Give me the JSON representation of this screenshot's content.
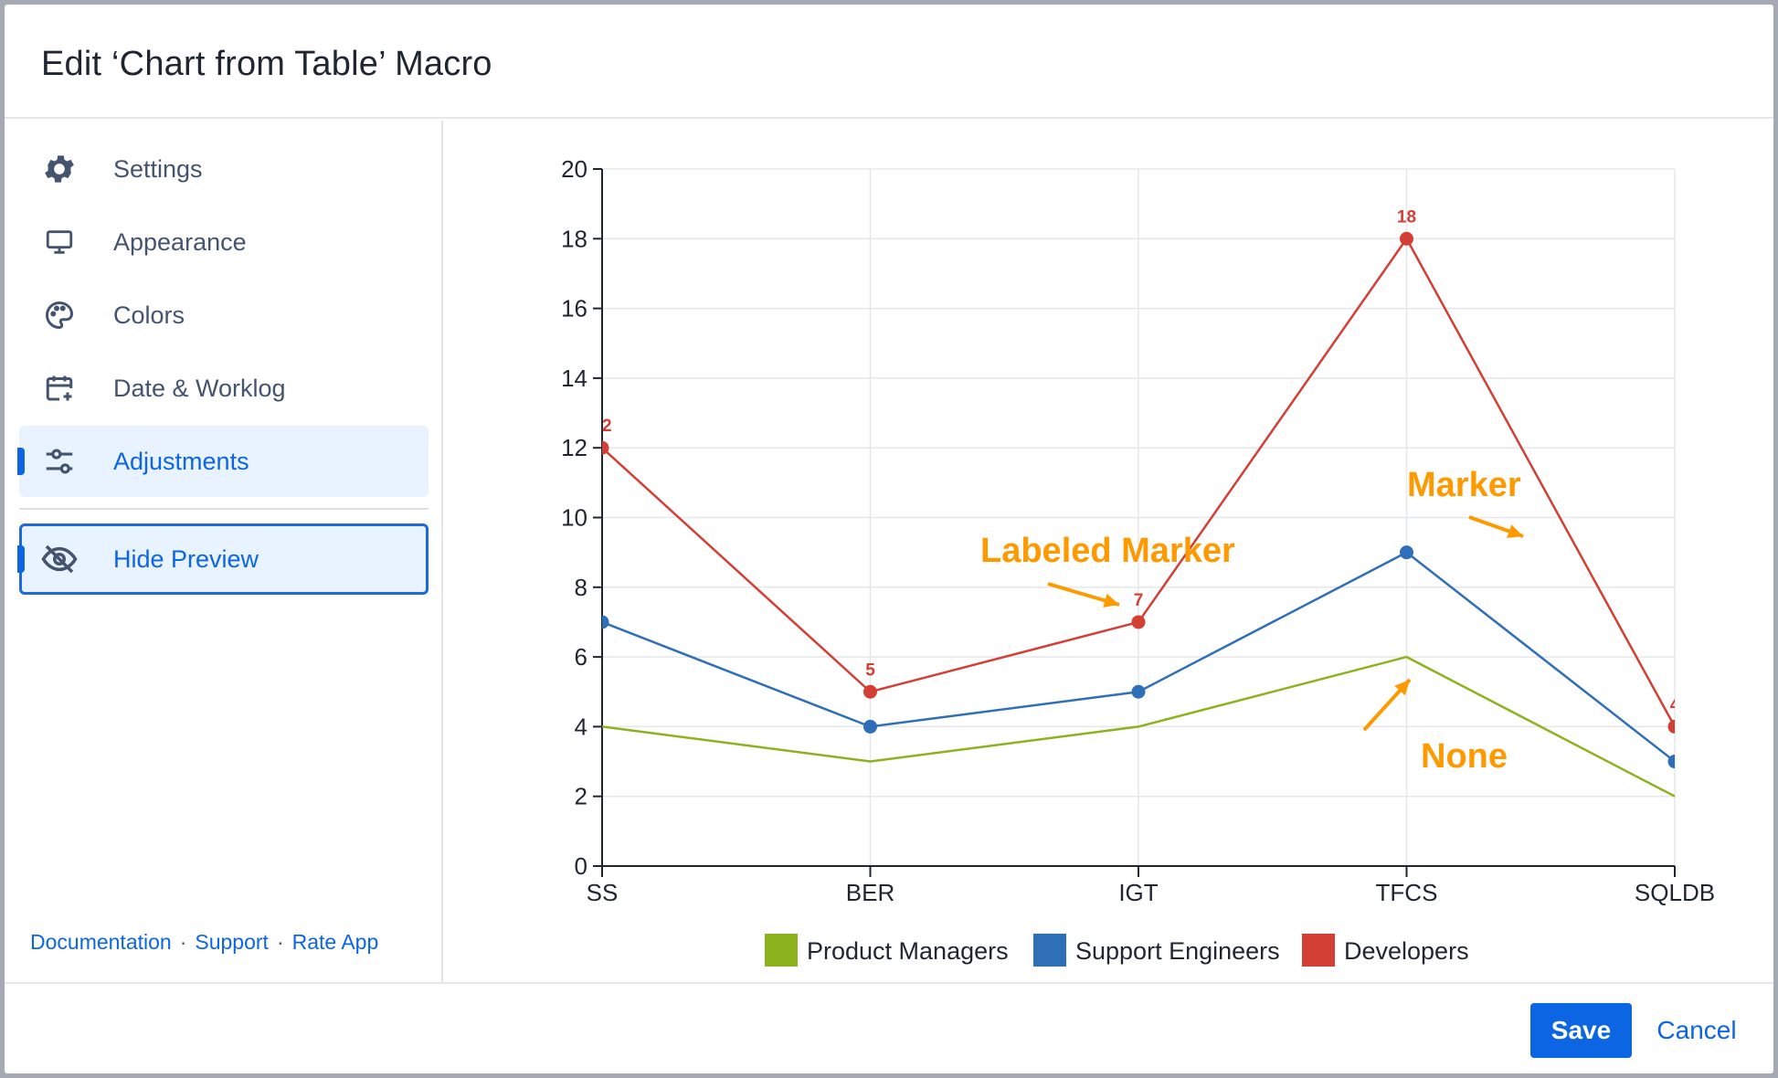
{
  "dialog": {
    "title": "Edit ‘Chart from Table’ Macro"
  },
  "sidebar": {
    "items": [
      {
        "label": "Settings",
        "icon": "gear-icon"
      },
      {
        "label": "Appearance",
        "icon": "monitor-icon"
      },
      {
        "label": "Colors",
        "icon": "palette-icon"
      },
      {
        "label": "Date & Worklog",
        "icon": "calendar-plus-icon"
      },
      {
        "label": "Adjustments",
        "icon": "sliders-icon",
        "active": true
      }
    ],
    "preview_toggle": {
      "label": "Hide Preview",
      "icon": "eye-off-icon"
    },
    "links": {
      "documentation": "Documentation",
      "support": "Support",
      "rate": "Rate App",
      "separator": "·"
    }
  },
  "footer": {
    "save_label": "Save",
    "cancel_label": "Cancel"
  },
  "colors": {
    "accent": "#0c66e4",
    "annotation": "#ff9900"
  },
  "chart_data": {
    "type": "line",
    "categories": [
      "SS",
      "BER",
      "IGT",
      "TFCS",
      "SQLDB"
    ],
    "ylim": [
      0,
      20
    ],
    "yticks": [
      0,
      2,
      4,
      6,
      8,
      10,
      12,
      14,
      16,
      18,
      20
    ],
    "grid": true,
    "legend_position": "bottom",
    "series": [
      {
        "name": "Product Managers",
        "color": "#8cb21e",
        "values": [
          4,
          3,
          4,
          6,
          2
        ],
        "marker": "none",
        "labels": false
      },
      {
        "name": "Support Engineers",
        "color": "#2f6fb7",
        "values": [
          7,
          4,
          5,
          9,
          3
        ],
        "marker": "circle",
        "labels": false
      },
      {
        "name": "Developers",
        "color": "#d33f34",
        "values": [
          12,
          5,
          7,
          18,
          4
        ],
        "marker": "circle",
        "labels": true
      }
    ],
    "annotations": [
      {
        "text": "Labeled Marker"
      },
      {
        "text": "Marker"
      },
      {
        "text": "None"
      }
    ]
  }
}
